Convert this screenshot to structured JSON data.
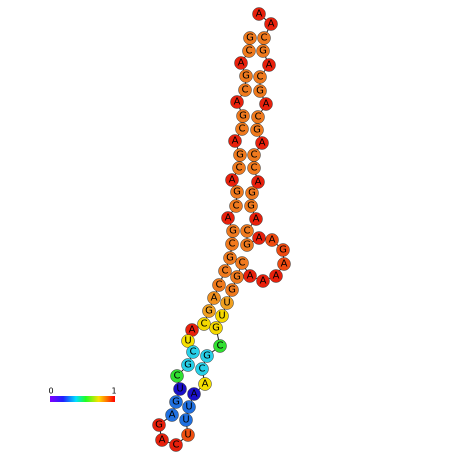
{
  "nodes": [
    {
      "label": "G",
      "color": "#f07a1e"
    },
    {
      "label": "C",
      "color": "#f07a1e"
    },
    {
      "label": "A",
      "color": "#e8200c"
    },
    {
      "label": "G",
      "color": "#f07a1e"
    },
    {
      "label": "C",
      "color": "#f07a1e"
    },
    {
      "label": "A",
      "color": "#e8200c"
    },
    {
      "label": "G",
      "color": "#f07a1e"
    },
    {
      "label": "C",
      "color": "#f07a1e"
    },
    {
      "label": "A",
      "color": "#e8200c"
    },
    {
      "label": "G",
      "color": "#f07a1e"
    },
    {
      "label": "C",
      "color": "#f07a1e"
    },
    {
      "label": "A",
      "color": "#e8200c"
    },
    {
      "label": "G",
      "color": "#f07a1e"
    },
    {
      "label": "C",
      "color": "#f07a1e"
    },
    {
      "label": "A",
      "color": "#e8200c"
    },
    {
      "label": "G",
      "color": "#f07a1e"
    },
    {
      "label": "C",
      "color": "#f07a1e"
    },
    {
      "label": "G",
      "color": "#f07a1e"
    },
    {
      "label": "C",
      "color": "#f07a1e"
    },
    {
      "label": "C",
      "color": "#f07a1e"
    },
    {
      "label": "A",
      "color": "#f09020"
    },
    {
      "label": "G",
      "color": "#f0a020"
    },
    {
      "label": "C",
      "color": "#f5d800"
    },
    {
      "label": "A",
      "color": "#e8200c"
    },
    {
      "label": "U",
      "color": "#f5e000"
    },
    {
      "label": "C",
      "color": "#28d0e8"
    },
    {
      "label": "G",
      "color": "#28d0e8"
    },
    {
      "label": "C",
      "color": "#30e030"
    },
    {
      "label": "U",
      "color": "#1a10c8"
    },
    {
      "label": "G",
      "color": "#2070e0"
    },
    {
      "label": "A",
      "color": "#2070e0"
    },
    {
      "label": "G",
      "color": "#e8200c"
    },
    {
      "label": "A",
      "color": "#e8200c"
    },
    {
      "label": "C",
      "color": "#e8200c"
    },
    {
      "label": "U",
      "color": "#f05010"
    },
    {
      "label": "U",
      "color": "#2070e0"
    },
    {
      "label": "U",
      "color": "#2070e0"
    },
    {
      "label": "A",
      "color": "#1a10c8"
    },
    {
      "label": "A",
      "color": "#f5e000"
    },
    {
      "label": "C",
      "color": "#28d0e8"
    },
    {
      "label": "G",
      "color": "#28d0e8"
    },
    {
      "label": "C",
      "color": "#30e030"
    },
    {
      "label": "G",
      "color": "#f5d800"
    },
    {
      "label": "U",
      "color": "#f5d800"
    },
    {
      "label": "U",
      "color": "#f0a020"
    },
    {
      "label": "G",
      "color": "#f07a1e"
    },
    {
      "label": "G",
      "color": "#f07a1e"
    },
    {
      "label": "C",
      "color": "#f07a1e"
    },
    {
      "label": "A",
      "color": "#e8200c"
    },
    {
      "label": "A",
      "color": "#e8200c"
    },
    {
      "label": "A",
      "color": "#e8200c"
    },
    {
      "label": "A",
      "color": "#f04a10"
    },
    {
      "label": "G",
      "color": "#f04a10"
    },
    {
      "label": "A",
      "color": "#f04a10"
    },
    {
      "label": "A",
      "color": "#e8200c"
    },
    {
      "label": "G",
      "color": "#f07a1e"
    },
    {
      "label": "C",
      "color": "#f07a1e"
    },
    {
      "label": "A",
      "color": "#e8200c"
    },
    {
      "label": "G",
      "color": "#f07a1e"
    },
    {
      "label": "G",
      "color": "#f07a1e"
    },
    {
      "label": "A",
      "color": "#e8200c"
    },
    {
      "label": "C",
      "color": "#f07a1e"
    },
    {
      "label": "C",
      "color": "#f07a1e"
    },
    {
      "label": "A",
      "color": "#e8200c"
    },
    {
      "label": "G",
      "color": "#f07a1e"
    },
    {
      "label": "C",
      "color": "#f07a1e"
    },
    {
      "label": "A",
      "color": "#e8200c"
    },
    {
      "label": "G",
      "color": "#f07a1e"
    },
    {
      "label": "C",
      "color": "#f07a1e"
    },
    {
      "label": "A",
      "color": "#e8200c"
    },
    {
      "label": "G",
      "color": "#f07a1e"
    },
    {
      "label": "C",
      "color": "#f07a1e"
    },
    {
      "label": "A",
      "color": "#e8200c"
    },
    {
      "label": "A",
      "color": "#e8200c"
    }
  ],
  "colorbar": {
    "min": 0,
    "max": 1
  }
}
